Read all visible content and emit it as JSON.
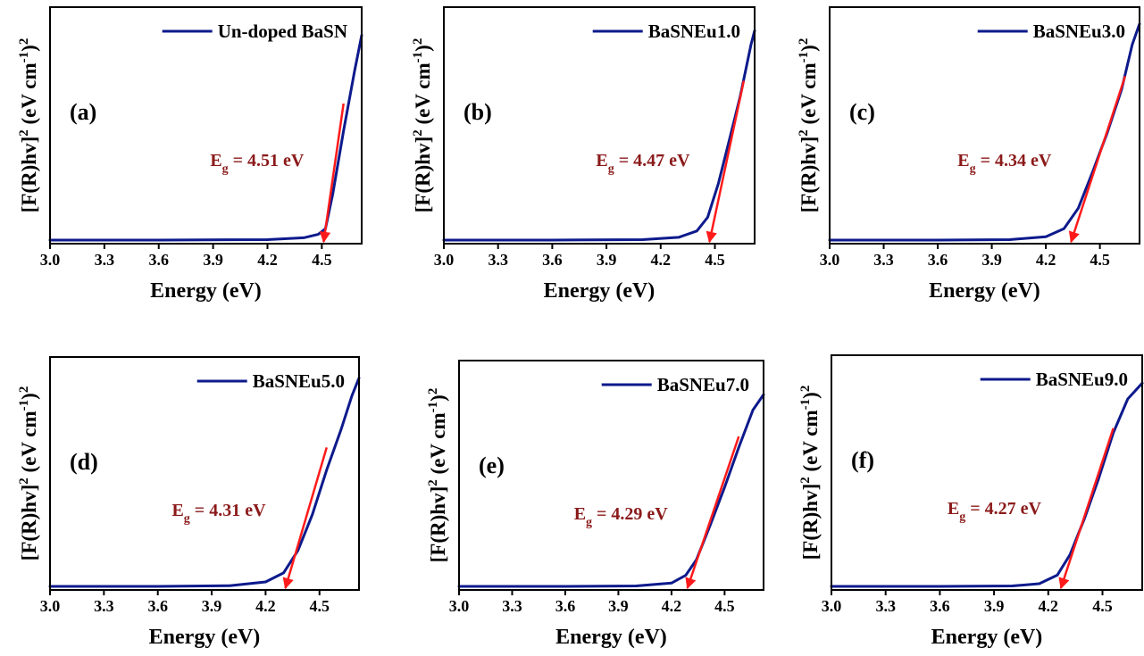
{
  "colors": {
    "curve": "#0d1a8c",
    "fit": "#ff1a1a",
    "gap_label": "#8b1a1a",
    "axis": "#000000"
  },
  "y_label": {
    "main": "[F(R)hv]",
    "sup1": "2",
    "unit_open": " (eV cm",
    "sup_exp": "-1",
    "unit_close": ")",
    "sup2": "2"
  },
  "chart_data": [
    {
      "type": "line",
      "panel_label": "(a)",
      "legend": "Un-doped BaSN",
      "xlabel": "Energy (eV)",
      "xlim": [
        3.0,
        4.72
      ],
      "xticks": [
        "3.0",
        "3.3",
        "3.6",
        "3.9",
        "4.2",
        "4.5"
      ],
      "ylim": [
        0,
        1
      ],
      "y_ticks": "none",
      "legend_position": "top-right",
      "series": [
        {
          "x": [
            3.0,
            3.6,
            4.2,
            4.4,
            4.48,
            4.52,
            4.56,
            4.62,
            4.68,
            4.72
          ],
          "y": [
            0.0,
            0.0,
            0.002,
            0.01,
            0.025,
            0.05,
            0.2,
            0.48,
            0.74,
            0.9
          ]
        }
      ],
      "fit_line": {
        "x": [
          4.51,
          4.62
        ],
        "y": [
          0.0,
          0.6
        ]
      },
      "band_gap": {
        "prefix": "E",
        "sub": "g",
        "suffix": " = 4.51 eV",
        "value_eV": 4.51
      }
    },
    {
      "type": "line",
      "panel_label": "(b)",
      "legend": "BaSNEu1.0",
      "xlabel": "Energy (eV)",
      "xlim": [
        3.0,
        4.72
      ],
      "xticks": [
        "3.0",
        "3.3",
        "3.6",
        "3.9",
        "4.2",
        "4.5"
      ],
      "ylim": [
        0,
        1
      ],
      "y_ticks": "none",
      "legend_position": "top-right",
      "series": [
        {
          "x": [
            3.0,
            3.6,
            4.1,
            4.3,
            4.4,
            4.46,
            4.52,
            4.58,
            4.64,
            4.7,
            4.72
          ],
          "y": [
            0.0,
            0.0,
            0.002,
            0.012,
            0.04,
            0.1,
            0.25,
            0.44,
            0.63,
            0.86,
            0.92
          ]
        }
      ],
      "fit_line": {
        "x": [
          4.47,
          4.66
        ],
        "y": [
          0.0,
          0.7
        ]
      },
      "band_gap": {
        "prefix": "E",
        "sub": "g",
        "suffix": " = 4.47 eV",
        "value_eV": 4.47
      }
    },
    {
      "type": "line",
      "panel_label": "(c)",
      "legend": "BaSNEu3.0",
      "xlabel": "Energy (eV)",
      "xlim": [
        3.0,
        4.72
      ],
      "xticks": [
        "3.0",
        "3.3",
        "3.6",
        "3.9",
        "4.2",
        "4.5"
      ],
      "ylim": [
        0,
        1
      ],
      "y_ticks": "none",
      "legend_position": "top-right",
      "series": [
        {
          "x": [
            3.0,
            3.6,
            4.0,
            4.2,
            4.3,
            4.38,
            4.46,
            4.54,
            4.62,
            4.68,
            4.72
          ],
          "y": [
            0.0,
            0.0,
            0.002,
            0.015,
            0.05,
            0.14,
            0.3,
            0.47,
            0.66,
            0.86,
            0.95
          ]
        }
      ],
      "fit_line": {
        "x": [
          4.34,
          4.64
        ],
        "y": [
          0.0,
          0.72
        ]
      },
      "band_gap": {
        "prefix": "E",
        "sub": "g",
        "suffix": " = 4.34 eV",
        "value_eV": 4.34
      }
    },
    {
      "type": "line",
      "panel_label": "(d)",
      "legend": "BaSNEu5.0",
      "xlabel": "Energy (eV)",
      "xlim": [
        3.0,
        4.72
      ],
      "xticks": [
        "3.0",
        "3.3",
        "3.6",
        "3.9",
        "4.2",
        "4.5"
      ],
      "ylim": [
        0,
        1
      ],
      "y_ticks": "none",
      "legend_position": "top-right",
      "series": [
        {
          "x": [
            3.0,
            3.6,
            4.0,
            4.2,
            4.3,
            4.38,
            4.46,
            4.54,
            4.62,
            4.68,
            4.72
          ],
          "y": [
            0.0,
            0.0,
            0.003,
            0.02,
            0.06,
            0.16,
            0.32,
            0.52,
            0.7,
            0.85,
            0.93
          ]
        }
      ],
      "fit_line": {
        "x": [
          4.31,
          4.54
        ],
        "y": [
          0.0,
          0.62
        ]
      },
      "band_gap": {
        "prefix": "E",
        "sub": "g",
        "suffix": " = 4.31 eV",
        "value_eV": 4.31
      }
    },
    {
      "type": "line",
      "panel_label": "(e)",
      "legend": "BaSNEu7.0",
      "xlabel": "Energy (eV)",
      "xlim": [
        3.0,
        4.72
      ],
      "xticks": [
        "3.0",
        "3.3",
        "3.6",
        "3.9",
        "4.2",
        "4.5"
      ],
      "ylim": [
        0,
        1
      ],
      "y_ticks": "none",
      "legend_position": "top-right",
      "series": [
        {
          "x": [
            3.0,
            3.6,
            4.0,
            4.2,
            4.28,
            4.34,
            4.42,
            4.5,
            4.58,
            4.66,
            4.72
          ],
          "y": [
            0.0,
            0.0,
            0.002,
            0.015,
            0.05,
            0.12,
            0.28,
            0.45,
            0.63,
            0.8,
            0.87
          ]
        }
      ],
      "fit_line": {
        "x": [
          4.29,
          4.58
        ],
        "y": [
          0.0,
          0.68
        ]
      },
      "band_gap": {
        "prefix": "E",
        "sub": "g",
        "suffix": " = 4.29 eV",
        "value_eV": 4.29
      }
    },
    {
      "type": "line",
      "panel_label": "(f)",
      "legend": "BaSNEu9.0",
      "xlabel": "Energy (eV)",
      "xlim": [
        3.0,
        4.72
      ],
      "xticks": [
        "3.0",
        "3.3",
        "3.6",
        "3.9",
        "4.2",
        "4.5"
      ],
      "ylim": [
        0,
        1
      ],
      "y_ticks": "none",
      "legend_position": "top-right",
      "series": [
        {
          "x": [
            3.0,
            3.6,
            4.0,
            4.15,
            4.25,
            4.32,
            4.4,
            4.48,
            4.56,
            4.64,
            4.72
          ],
          "y": [
            0.0,
            0.0,
            0.002,
            0.012,
            0.05,
            0.14,
            0.3,
            0.48,
            0.68,
            0.83,
            0.9
          ]
        }
      ],
      "fit_line": {
        "x": [
          4.27,
          4.56
        ],
        "y": [
          0.0,
          0.7
        ]
      },
      "band_gap": {
        "prefix": "E",
        "sub": "g",
        "suffix": " = 4.27 eV",
        "value_eV": 4.27
      }
    }
  ]
}
